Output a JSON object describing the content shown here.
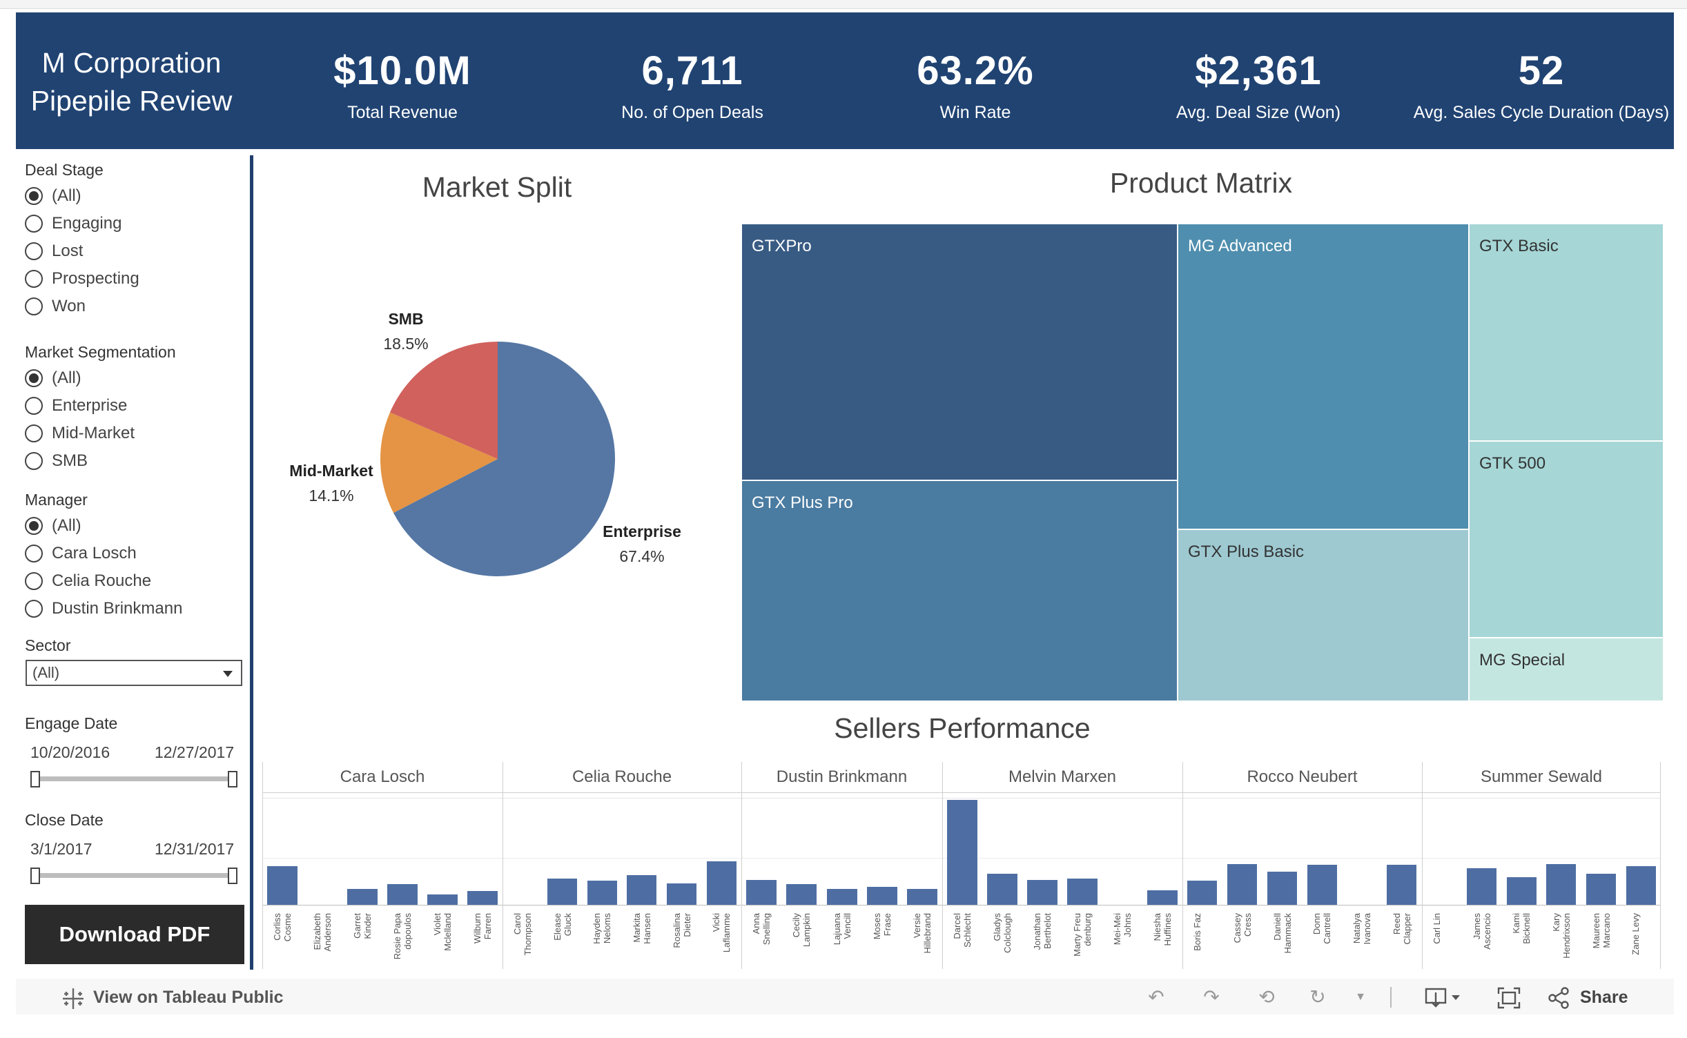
{
  "header": {
    "title_line1": "M Corporation",
    "title_line2": "Pipepile Review",
    "kpis": [
      {
        "value": "$10.0M",
        "label": "Total Revenue"
      },
      {
        "value": "6,711",
        "label": "No. of Open Deals"
      },
      {
        "value": "63.2%",
        "label": "Win Rate"
      },
      {
        "value": "$2,361",
        "label": "Avg. Deal Size (Won)"
      },
      {
        "value": "52",
        "label": "Avg. Sales Cycle Duration (Days)"
      }
    ]
  },
  "filters": {
    "deal_stage": {
      "title": "Deal Stage",
      "options": [
        "(All)",
        "Engaging",
        "Lost",
        "Prospecting",
        "Won"
      ],
      "selected": 0
    },
    "market_segmentation": {
      "title": "Market Segmentation",
      "options": [
        "(All)",
        "Enterprise",
        "Mid-Market",
        "SMB"
      ],
      "selected": 0
    },
    "manager": {
      "title": "Manager",
      "options": [
        "(All)",
        "Cara Losch",
        "Celia Rouche",
        "Dustin Brinkmann"
      ],
      "selected": 0
    },
    "sector": {
      "title": "Sector",
      "value": "(All)"
    },
    "engage_date": {
      "title": "Engage Date",
      "start": "10/20/2016",
      "end": "12/27/2017"
    },
    "close_date": {
      "title": "Close Date",
      "start": "3/1/2017",
      "end": "12/31/2017"
    }
  },
  "download_label": "Download PDF",
  "market_split": {
    "title": "Market Split",
    "colors": {
      "Enterprise": "#5677a4",
      "Mid-Market": "#e49444",
      "SMB": "#d1615d"
    }
  },
  "product_matrix": {
    "title": "Product Matrix",
    "cells": [
      {
        "name": "GTXPro",
        "color": "#385b84",
        "text_color": "#ffffff"
      },
      {
        "name": "GTX Plus Pro",
        "color": "#4a7ba1",
        "text_color": "#ffffff"
      },
      {
        "name": "MG Advanced",
        "color": "#4f8eae",
        "text_color": "#ffffff"
      },
      {
        "name": "GTX Plus Basic",
        "color": "#9ec9d1",
        "text_color": "#333333"
      },
      {
        "name": "GTX Basic",
        "color": "#a6d6d6",
        "text_color": "#333333"
      },
      {
        "name": "GTK 500",
        "color": "#a6d6d6",
        "text_color": "#333333"
      },
      {
        "name": "MG Special",
        "color": "#c4e6e1",
        "text_color": "#333333"
      }
    ]
  },
  "sellers_performance": {
    "title": "Sellers Performance",
    "bar_color": "#4e6ea3"
  },
  "chart_data": [
    {
      "type": "pie",
      "title": "Market Split",
      "categories": [
        "Enterprise",
        "Mid-Market",
        "SMB"
      ],
      "labels": [
        "67.4%",
        "14.1%",
        "18.5%"
      ],
      "values": [
        67.4,
        14.1,
        18.5
      ]
    },
    {
      "type": "treemap",
      "title": "Product Matrix",
      "categories": [
        "GTXPro",
        "GTX Plus Pro",
        "MG Advanced",
        "GTX Plus Basic",
        "GTX Basic",
        "GTK 500",
        "MG Special"
      ]
    },
    {
      "type": "bar",
      "title": "Sellers Performance",
      "panes": [
        {
          "manager": "Cara Losch",
          "sellers": [
            {
              "name": "Corliss\nCosme",
              "value": 34
            },
            {
              "name": "Elizabeth\nAnderson",
              "value": 0
            },
            {
              "name": "Garret\nKinder",
              "value": 14
            },
            {
              "name": "Rosie Papa\ndopoulos",
              "value": 18
            },
            {
              "name": "Violet\nMclelland",
              "value": 9
            },
            {
              "name": "Wilburn\nFarren",
              "value": 12
            }
          ]
        },
        {
          "manager": "Celia Rouche",
          "sellers": [
            {
              "name": "Carol\nThompson",
              "value": 0
            },
            {
              "name": "Elease\nGluck",
              "value": 23
            },
            {
              "name": "Hayden\nNeloms",
              "value": 21
            },
            {
              "name": "Markita\nHansen",
              "value": 26
            },
            {
              "name": "Rosalina\nDieter",
              "value": 19
            },
            {
              "name": "Vicki\nLaflamme",
              "value": 38
            }
          ]
        },
        {
          "manager": "Dustin Brinkmann",
          "sellers": [
            {
              "name": "Anna\nSnelling",
              "value": 22
            },
            {
              "name": "Cecily\nLampkin",
              "value": 18
            },
            {
              "name": "Lajuana\nVencill",
              "value": 14
            },
            {
              "name": "Moses\nFrase",
              "value": 16
            },
            {
              "name": "Versie\nHillebrand",
              "value": 14
            }
          ]
        },
        {
          "manager": "Melvin Marxen",
          "sellers": [
            {
              "name": "Darcel\nSchlecht",
              "value": 92
            },
            {
              "name": "Gladys\nColclough",
              "value": 27
            },
            {
              "name": "Jonathan\nBerthelot",
              "value": 22
            },
            {
              "name": "Marty Freu\ndenburg",
              "value": 23
            },
            {
              "name": "Mei-Mei\nJohns",
              "value": 0
            },
            {
              "name": "Niesha\nHuffines",
              "value": 13
            }
          ]
        },
        {
          "manager": "Rocco Neubert",
          "sellers": [
            {
              "name": "Boris Faz",
              "value": 21
            },
            {
              "name": "Cassey\nCress",
              "value": 36
            },
            {
              "name": "Daniell\nHammack",
              "value": 29
            },
            {
              "name": "Donn\nCantrell",
              "value": 35
            },
            {
              "name": "Natalya\nIvanova",
              "value": 0
            },
            {
              "name": "Reed\nClapper",
              "value": 35
            }
          ]
        },
        {
          "manager": "Summer Sewald",
          "sellers": [
            {
              "name": "Carl Lin",
              "value": 0
            },
            {
              "name": "James\nAscencio",
              "value": 32
            },
            {
              "name": "Kami\nBicknell",
              "value": 24
            },
            {
              "name": "Kary\nHendrixson",
              "value": 36
            },
            {
              "name": "Maureen\nMarcano",
              "value": 27
            },
            {
              "name": "Zane Levy",
              "value": 34
            }
          ]
        }
      ],
      "ylim": [
        0,
        95
      ]
    }
  ],
  "footer": {
    "view_label": "View on Tableau Public",
    "share_label": "Share"
  }
}
